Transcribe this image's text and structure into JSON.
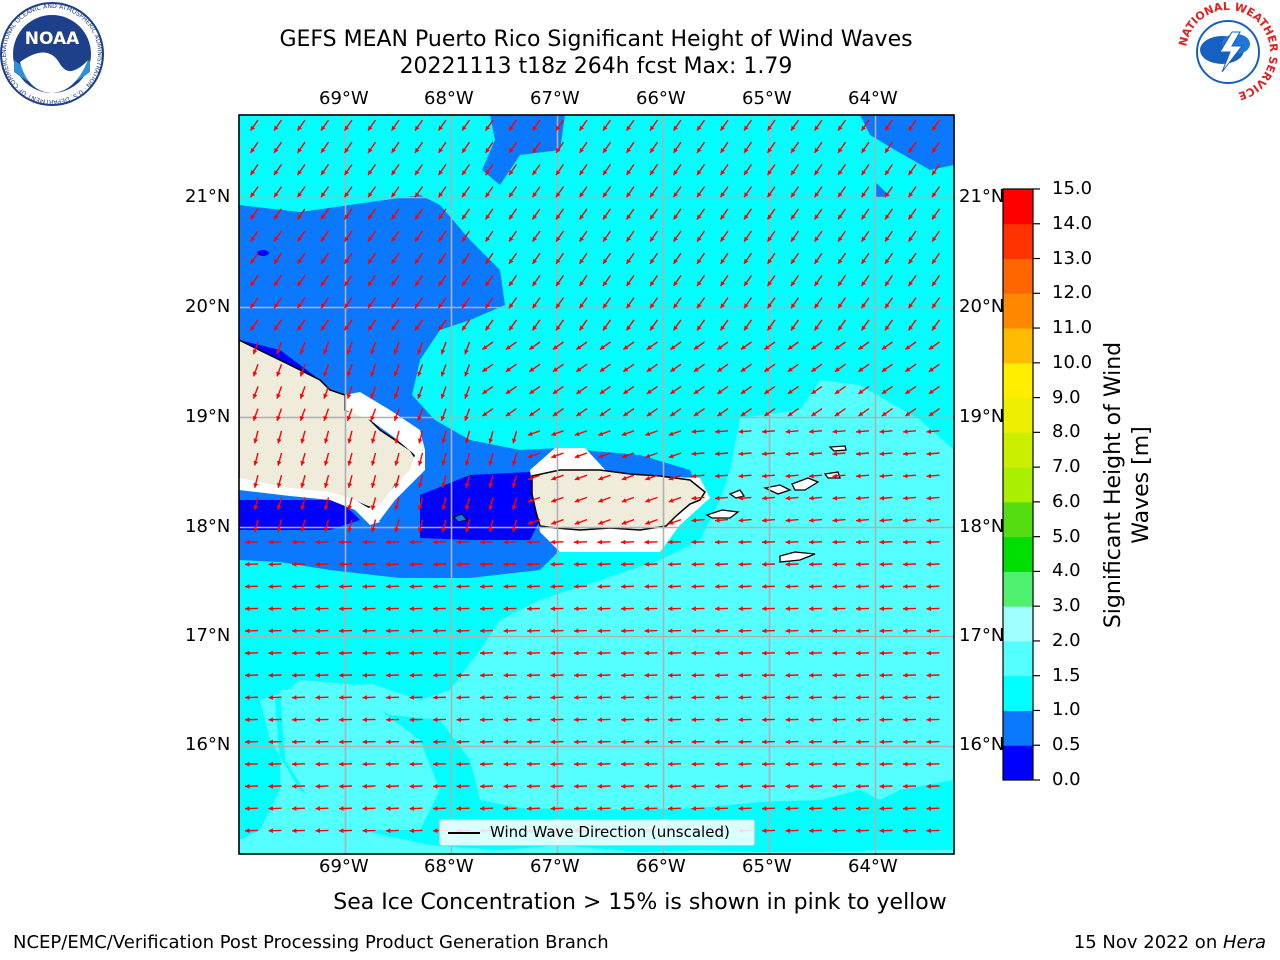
{
  "header": {
    "title_line1": "GEFS MEAN Puerto Rico Significant Height of Wind Waves",
    "title_line2": "20221113 t18z 264h fcst   Max: 1.79"
  },
  "logos": {
    "noaa_text": "NOAA",
    "noaa_ring": "NATIONAL OCEANIC AND ATMOSPHERIC ADMINISTRATION · U.S. DEPARTMENT OF COMMERCE",
    "nws_ring": "NATIONAL WEATHER SERVICE"
  },
  "map": {
    "lon_labels": [
      "69°W",
      "68°W",
      "67°W",
      "66°W",
      "65°W",
      "64°W"
    ],
    "lat_labels": [
      "21°N",
      "20°N",
      "19°N",
      "18°N",
      "17°N",
      "16°N"
    ],
    "legend_label": "Wind Wave Direction (unscaled)"
  },
  "colorbar": {
    "title_line1": "Significant Height of Wind",
    "title_line2": "Waves [m]",
    "ticks": [
      "0.0",
      "0.5",
      "1.0",
      "1.5",
      "2.0",
      "3.0",
      "4.0",
      "5.0",
      "6.0",
      "7.0",
      "8.0",
      "9.0",
      "10.0",
      "11.0",
      "12.0",
      "13.0",
      "14.0",
      "15.0"
    ],
    "colors": [
      "#0000ff",
      "#0a78ff",
      "#00ffff",
      "#55ffff",
      "#a0ffff",
      "#50f070",
      "#00dd00",
      "#55dd11",
      "#aaee00",
      "#ccee00",
      "#eeee00",
      "#ffee00",
      "#ffbb00",
      "#ff8800",
      "#ff6600",
      "#ff3300",
      "#ff0000"
    ]
  },
  "subtitle": "Sea Ice Concentration > 15% is shown in pink to yellow",
  "footer": {
    "left": "NCEP/EMC/Verification Post Processing Product Generation Branch",
    "right_prefix": "15 Nov 2022 on ",
    "right_italic": "Hera"
  }
}
